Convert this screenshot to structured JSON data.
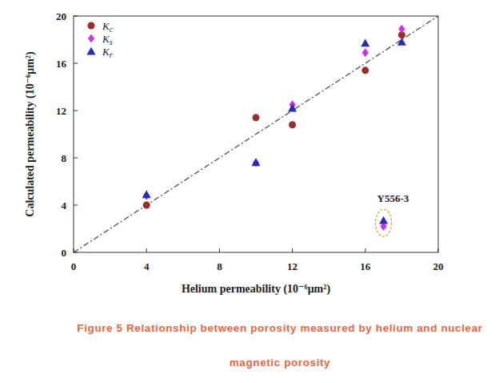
{
  "chart_data": {
    "type": "scatter",
    "title": "Figure 5 Relationship between porosity measured by helium and nuclear magnetic porosity",
    "x_label": "Helium permeability (10⁻⁶μm²)",
    "y_label": "Calculated permeability (10⁻⁶μm²)",
    "xlim": [
      0,
      20
    ],
    "ylim": [
      0,
      20
    ],
    "xticks": [
      0,
      4,
      8,
      12,
      16,
      20
    ],
    "yticks": [
      0,
      4,
      8,
      12,
      16,
      20
    ],
    "grid": false,
    "legend": "top-left",
    "series": [
      {
        "name": "Kc",
        "color": "#9b2c2c",
        "marker": "circle",
        "x": [
          4,
          10,
          12,
          16,
          18
        ],
        "values": [
          4.0,
          11.4,
          10.8,
          15.4,
          18.4
        ]
      },
      {
        "name": "Ks",
        "color": "#cc33e6",
        "marker": "diamond",
        "x": [
          4,
          10,
          12,
          16,
          18,
          17
        ],
        "values": [
          4.8,
          7.6,
          12.5,
          16.9,
          18.9,
          2.2
        ]
      },
      {
        "name": "Kr",
        "color": "#2b2bb5",
        "marker": "triangle",
        "x": [
          4,
          10,
          12,
          16,
          18,
          17
        ],
        "values": [
          4.9,
          7.6,
          12.2,
          17.7,
          17.8,
          2.7
        ]
      }
    ],
    "annotations": [
      {
        "text": "Y556-3",
        "x": 17,
        "y": 2.5
      }
    ]
  }
}
